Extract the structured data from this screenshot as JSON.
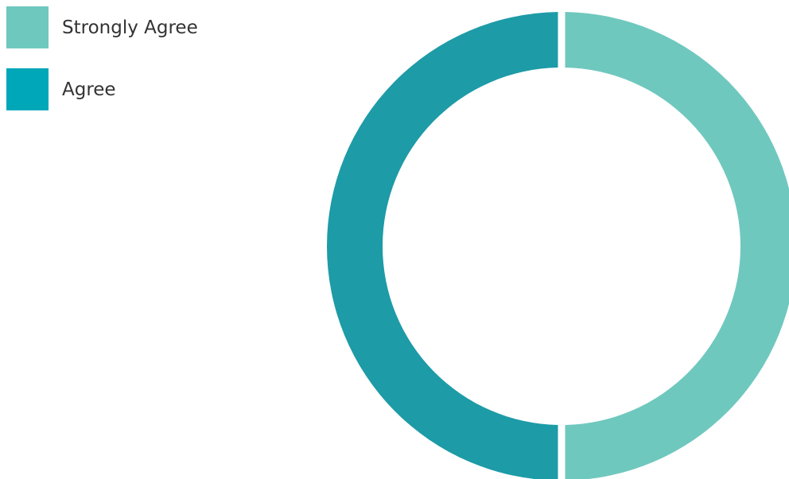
{
  "chart_data": {
    "type": "pie",
    "variant": "donut",
    "title": "",
    "legend_placement": "top-left",
    "series": [
      {
        "name": "Strongly Agree",
        "value": 50,
        "color": "#6fc8be"
      },
      {
        "name": "Agree",
        "value": 50,
        "color": "#1d9ba7"
      }
    ],
    "legend": [
      {
        "label": "Strongly Agree",
        "color": "#6fc8be"
      },
      {
        "label": "Agree",
        "color": "#00a7b9"
      }
    ]
  }
}
